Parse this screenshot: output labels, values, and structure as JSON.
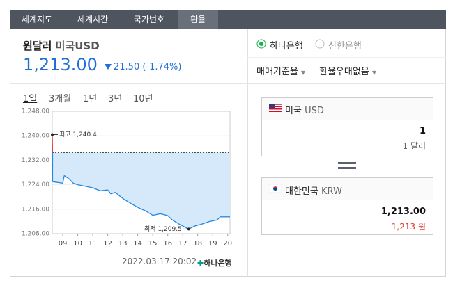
{
  "tabs": [
    "세계지도",
    "세계시간",
    "국가번호",
    "환율"
  ],
  "quote": {
    "title": "원달러",
    "code": "미국USD",
    "rate": "1,213.00",
    "change": "21.50 (-1.74%)"
  },
  "periods": [
    "1일",
    "3개월",
    "1년",
    "3년",
    "10년"
  ],
  "chart_data": {
    "type": "line",
    "x": [
      8.3,
      8.32,
      9.0,
      9.1,
      9.4,
      9.7,
      10.0,
      10.5,
      11.0,
      11.5,
      12.0,
      12.2,
      12.5,
      13.0,
      13.5,
      14.0,
      14.5,
      15.0,
      15.5,
      16.0,
      16.3,
      16.8,
      17.4,
      17.8,
      18.2,
      18.8,
      19.3,
      19.5,
      20.15
    ],
    "series": [
      {
        "name": "USD/KRW",
        "color": "#1e88e5",
        "values": [
          1240.4,
          1225.0,
          1224.5,
          1227.0,
          1226.0,
          1224.5,
          1224.0,
          1223.5,
          1223.0,
          1222.0,
          1222.3,
          1221.0,
          1221.5,
          1219.5,
          1218.0,
          1216.6,
          1215.5,
          1214.0,
          1214.5,
          1213.9,
          1212.5,
          1211.0,
          1209.5,
          1210.5,
          1211.0,
          1212.0,
          1212.5,
          1213.5,
          1213.5
        ]
      }
    ],
    "reference_line": 1234.5,
    "xlim": [
      8.3,
      20.15
    ],
    "xticks": [
      {
        "value": 9,
        "label": "09"
      },
      10,
      11,
      12,
      13,
      14,
      15,
      16,
      17,
      18,
      19,
      20
    ],
    "ylim": [
      1208,
      1248
    ],
    "yticks": [
      {
        "value": 1208,
        "label": "1,208.00"
      },
      {
        "value": 1216,
        "label": "1,216.00"
      },
      {
        "value": 1224,
        "label": "1,224.00"
      },
      {
        "value": 1232,
        "label": "1,232.00"
      },
      {
        "value": 1240,
        "label": "1,240.00"
      },
      {
        "value": 1248,
        "label": "1,248.00"
      }
    ],
    "annotations": [
      {
        "text": "최고 1,240.4",
        "x": 8.3,
        "y": 1240.4
      },
      {
        "text": "최저 1,209.5",
        "x": 17.4,
        "y": 1209.5
      }
    ],
    "grid": true
  },
  "timestamp": "2022.03.17 20:02",
  "source": "하나은행",
  "banks": [
    "하나은행",
    "신한은행"
  ],
  "options": [
    "매매기준율",
    "환율우대없음"
  ],
  "converter": {
    "from": {
      "country": "미국",
      "code": "USD",
      "amount": "1",
      "amount_text": "1 달러"
    },
    "to": {
      "country": "대한민국",
      "code": "KRW",
      "amount": "1,213.00",
      "amount_text": "1,213 원"
    }
  }
}
